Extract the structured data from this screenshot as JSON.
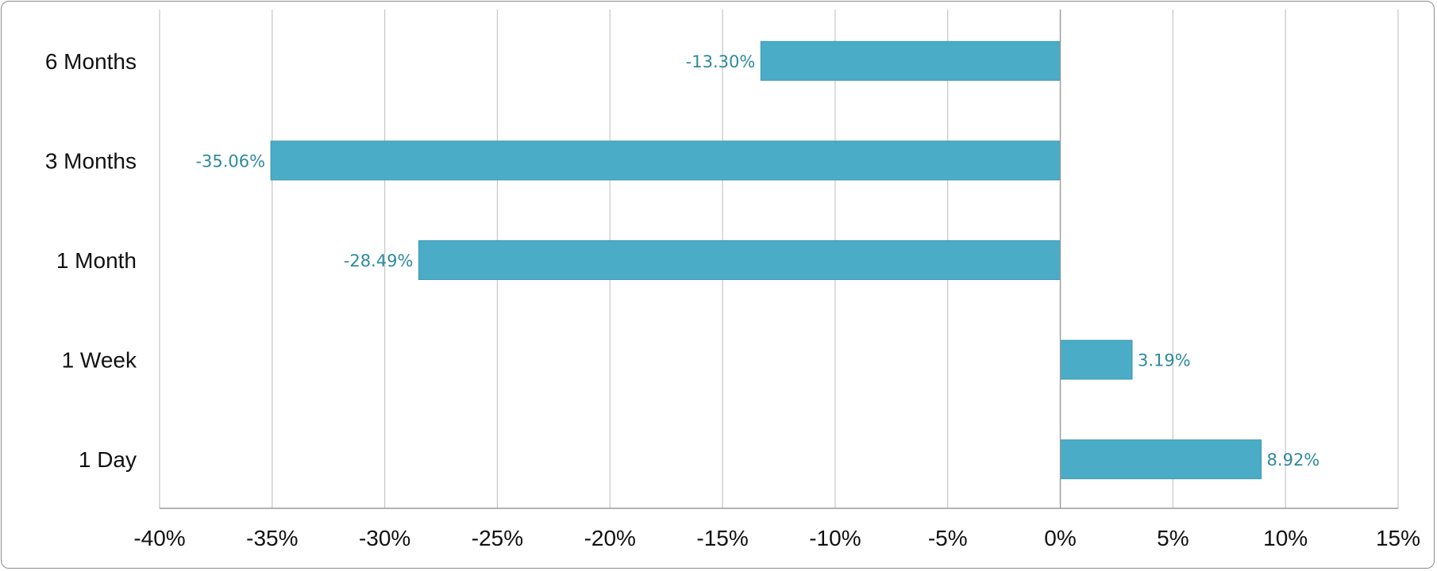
{
  "chart_data": {
    "type": "bar",
    "orientation": "horizontal",
    "categories": [
      "6 Months",
      "3 Months",
      "1 Month",
      "1 Week",
      "1 Day"
    ],
    "values": [
      -13.3,
      -35.06,
      -28.49,
      3.19,
      8.92
    ],
    "data_labels": [
      "-13.30%",
      "-35.06%",
      "-28.49%",
      "3.19%",
      "8.92%"
    ],
    "xlim": [
      -40,
      15
    ],
    "x_ticks": [
      -40,
      -35,
      -30,
      -25,
      -20,
      -15,
      -10,
      -5,
      0,
      5,
      10,
      15
    ],
    "x_tick_labels": [
      "-40%",
      "-35%",
      "-30%",
      "-25%",
      "-20%",
      "-15%",
      "-10%",
      "-5%",
      "0%",
      "5%",
      "10%",
      "15%"
    ],
    "title": "",
    "xlabel": "",
    "ylabel": "",
    "grid": true,
    "legend": "none",
    "bar_color": "#4aacc6",
    "label_color": "#2e8a9e"
  }
}
